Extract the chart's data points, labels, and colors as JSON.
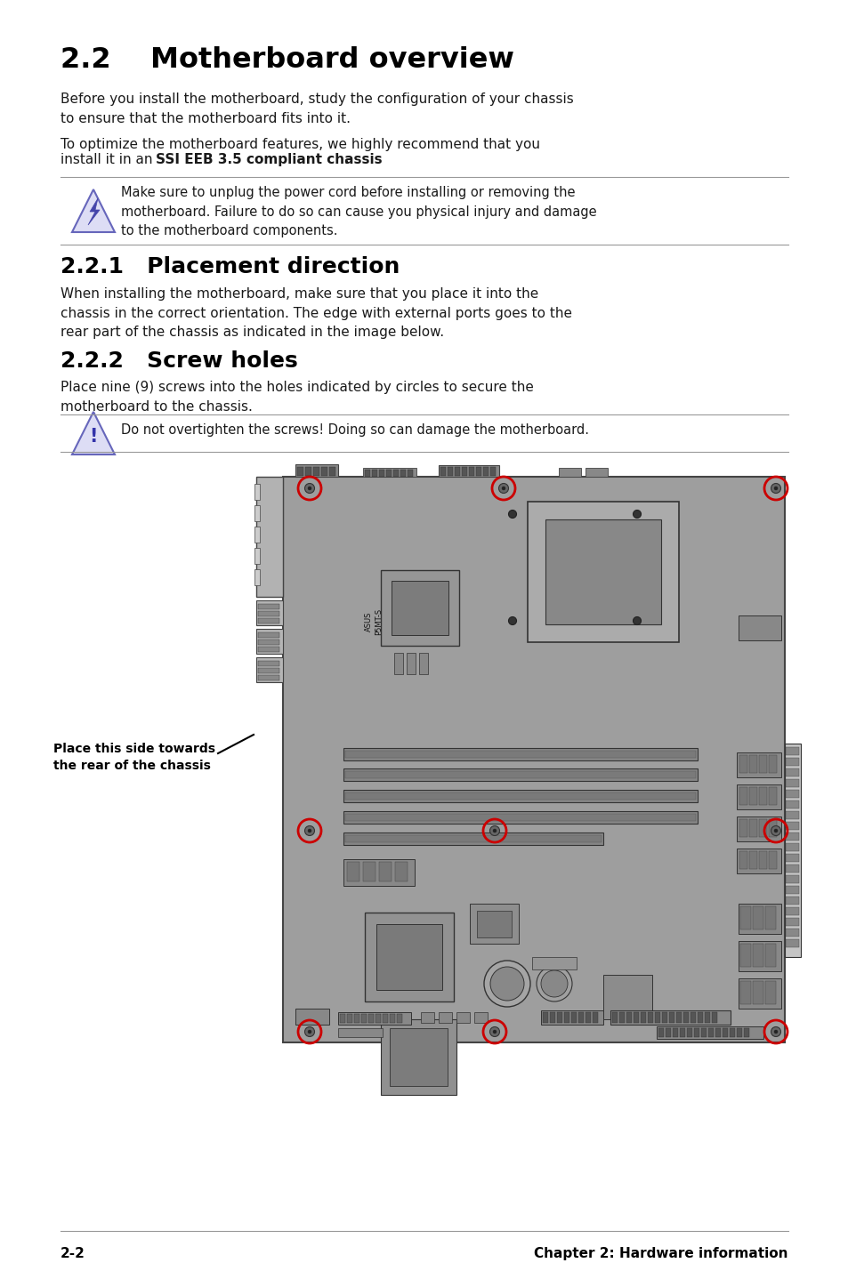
{
  "bg_color": "#ffffff",
  "section_22_title": "2.2    Motherboard overview",
  "section_22_body1": "Before you install the motherboard, study the configuration of your chassis\nto ensure that the motherboard fits into it.",
  "section_22_body2_line1": "To optimize the motherboard features, we highly recommend that you",
  "section_22_body2_line2_pre": "install it in an ",
  "section_22_body2_bold": "SSI EEB 3.5 compliant chassis",
  "section_22_body2_post": ".",
  "warning1_text": "Make sure to unplug the power cord before installing or removing the\nmotherboard. Failure to do so can cause you physical injury and damage\nto the motherboard components.",
  "section_221_title": "2.2.1   Placement direction",
  "section_221_body": "When installing the motherboard, make sure that you place it into the\nchassis in the correct orientation. The edge with external ports goes to the\nrear part of the chassis as indicated in the image below.",
  "section_222_title": "2.2.2   Screw holes",
  "section_222_body": "Place nine (9) screws into the holes indicated by circles to secure the\nmotherboard to the chassis.",
  "warning2_text": "Do not overtighten the screws! Doing so can damage the motherboard.",
  "label_text": "Place this side towards\nthe rear of the chassis",
  "footer_left": "2-2",
  "footer_right": "Chapter 2: Hardware information"
}
